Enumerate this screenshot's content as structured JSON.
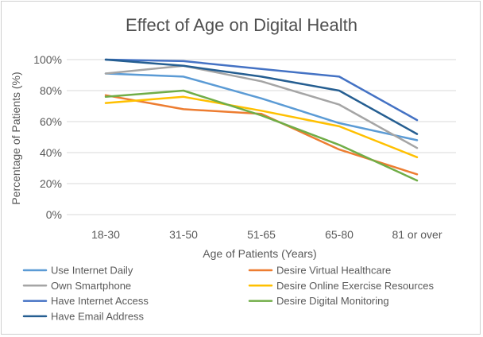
{
  "chart_data": {
    "type": "line",
    "title": "Effect of Age on Digital Health",
    "xlabel": "Age of Patients (Years)",
    "ylabel": "Percentage of Patients (%)",
    "categories": [
      "18-30",
      "31-50",
      "51-65",
      "65-80",
      "81 or over"
    ],
    "ylim": [
      0,
      100
    ],
    "yticks": [
      0,
      20,
      40,
      60,
      80,
      100
    ],
    "ytick_labels": [
      "0%",
      "20%",
      "40%",
      "60%",
      "80%",
      "100%"
    ],
    "grid": true,
    "legend_position": "bottom",
    "series": [
      {
        "name": "Use Internet Daily",
        "color": "#5b9bd5",
        "values": [
          91,
          89,
          75,
          59,
          48
        ]
      },
      {
        "name": "Desire Virtual Healthcare",
        "color": "#ed7d31",
        "values": [
          77,
          68,
          65,
          42,
          26
        ]
      },
      {
        "name": "Own Smartphone",
        "color": "#a5a5a5",
        "values": [
          91,
          96,
          86,
          71,
          43
        ]
      },
      {
        "name": "Desire Online Exercise Resources",
        "color": "#ffc000",
        "values": [
          72,
          76,
          67,
          57,
          37
        ]
      },
      {
        "name": "Have Internet Access",
        "color": "#4472c4",
        "values": [
          100,
          99,
          94,
          89,
          61
        ]
      },
      {
        "name": "Desire Digital Monitoring",
        "color": "#70ad47",
        "values": [
          76,
          80,
          64,
          45,
          22
        ]
      },
      {
        "name": "Have Email Address",
        "color": "#255e91",
        "values": [
          100,
          96,
          89,
          80,
          52
        ]
      }
    ]
  }
}
